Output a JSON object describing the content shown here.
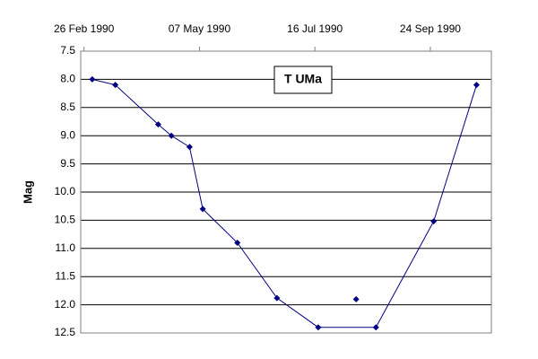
{
  "chart_data": {
    "type": "line",
    "annotation": "T UMa",
    "ylabel": "Mag",
    "y_reversed": true,
    "grid": true,
    "xlim": [
      "1990-02-24",
      "1990-10-31"
    ],
    "xticks": [
      {
        "value": "1990-02-26",
        "label": "26 Feb 1990"
      },
      {
        "value": "1990-05-07",
        "label": "07 May 1990"
      },
      {
        "value": "1990-07-16",
        "label": "16 Jul 1990"
      },
      {
        "value": "1990-09-24",
        "label": "24 Sep 1990"
      }
    ],
    "ylim": [
      7.5,
      12.5
    ],
    "yticks": [
      7.5,
      {
        "value": 8,
        "label": "8.0"
      },
      8.5,
      {
        "value": 9,
        "label": "9.0"
      },
      9.5,
      {
        "value": 10,
        "label": "10.0"
      },
      10.5,
      {
        "value": 11,
        "label": "11.0"
      },
      11.5,
      {
        "value": 12,
        "label": "12.0"
      },
      12.5
    ],
    "series": [
      {
        "color": "#000080",
        "line": true,
        "x": [
          "1990-03-03",
          "1990-03-17",
          "1990-04-12",
          "1990-04-20",
          "1990-05-01",
          "1990-05-09",
          "1990-05-30",
          "1990-06-23",
          "1990-07-18",
          "1990-08-22",
          "1990-09-26",
          "1990-10-22"
        ],
        "values": [
          8.0,
          8.1,
          8.8,
          9.0,
          9.2,
          10.3,
          10.9,
          11.88,
          12.4,
          12.4,
          10.52,
          8.1
        ]
      },
      {
        "color": "#000080",
        "line": false,
        "x": [
          "1990-08-10"
        ],
        "values": [
          11.9
        ]
      }
    ]
  }
}
